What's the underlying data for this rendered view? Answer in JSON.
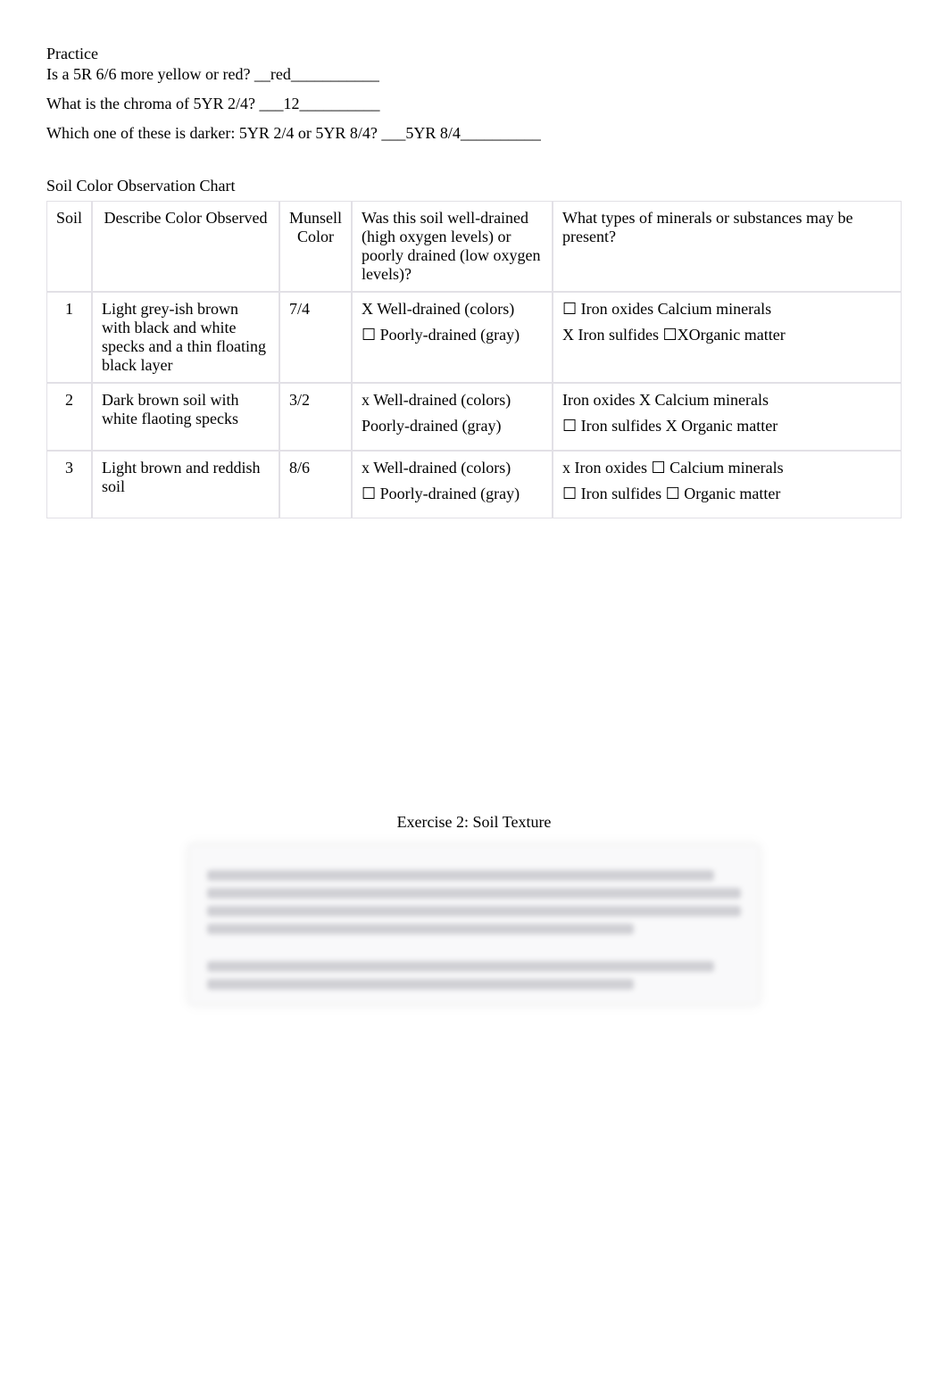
{
  "practice": {
    "title": "Practice",
    "q1": "Is a 5R 6/6 more yellow or red? __red___________",
    "q2": "What is the chroma of 5YR 2/4? ___12__________",
    "q3": "Which one of these is darker: 5YR 2/4 or 5YR 8/4? ___5YR 8/4__________"
  },
  "chart": {
    "title": "Soil Color Observation Chart",
    "headers": {
      "soil": "Soil",
      "describe": "Describe Color Observed",
      "munsell": "Munsell Color",
      "drained": "Was this soil well-drained   (high oxygen levels) or poorly   drained (low oxygen levels)?",
      "minerals": "What types of minerals or substances   may be present?"
    },
    "rows": [
      {
        "num": "1",
        "describe": "Light grey-ish brown with black and white specks and a thin floating black layer",
        "munsell": "7/4",
        "drain1": "X Well-drained (colors)",
        "drain2": "☐ Poorly-drained (gray)",
        "min_line1": "☐ Iron oxides  Calcium minerals",
        "min_line2": "X Iron sulfides ☐XOrganic matter"
      },
      {
        "num": "2",
        "describe": "Dark brown soil with white flaoting specks",
        "munsell": "3/2",
        "drain1": "x Well-drained (colors)",
        "drain2": " Poorly-drained (gray)",
        "min_line1": " Iron oxides X Calcium minerals",
        "min_line2": "☐ Iron sulfides X Organic matter"
      },
      {
        "num": "3",
        "describe": "Light brown and reddish soil",
        "munsell": "8/6",
        "drain1": "x Well-drained (colors)",
        "drain2": "☐ Poorly-drained (gray)",
        "min_line1": "x Iron oxides ☐ Calcium minerals",
        "min_line2": "☐ Iron sulfides ☐ Organic matter"
      }
    ]
  },
  "exercise2": {
    "title": "Exercise 2: Soil Texture"
  }
}
